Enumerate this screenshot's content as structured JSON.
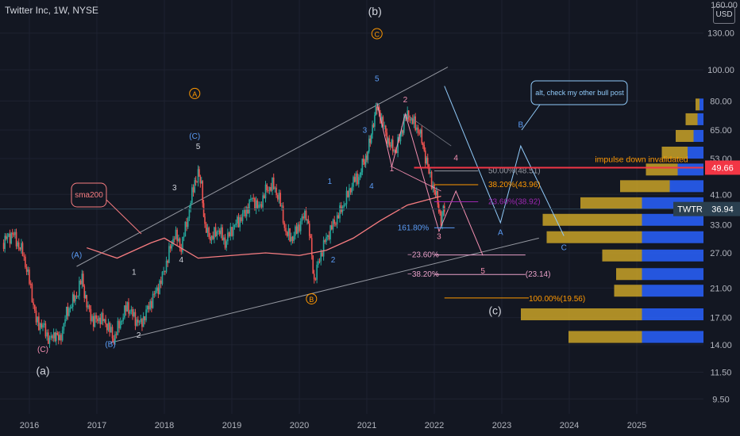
{
  "header": {
    "title": "Twitter Inc, 1W, NYSE",
    "currency": "USD"
  },
  "price_axis": {
    "top_partial": "160.00",
    "ticks": [
      "130.00",
      "100.00",
      "80.00",
      "65.00",
      "53.00",
      "41.00",
      "33.00",
      "27.00",
      "21.00",
      "17.00",
      "14.00",
      "11.50",
      "9.50"
    ],
    "badges": [
      {
        "text": "49.66",
        "color": "#f23645"
      },
      {
        "text": "TWTR",
        "color": "#2a3f4f"
      },
      {
        "text": "36.94",
        "color": "#2a3f4f"
      }
    ]
  },
  "time_axis": {
    "ticks": [
      "2016",
      "2017",
      "2018",
      "2019",
      "2020",
      "2021",
      "2022",
      "2023",
      "2024",
      "2025"
    ]
  },
  "chart_data": {
    "type": "candlestick",
    "symbol": "TWTR",
    "interval": "1W",
    "x_range": [
      2015.6,
      2025.9
    ],
    "y_range_log": [
      8.5,
      165
    ],
    "current_price": 36.94,
    "invalidation_level": 49.66,
    "price_path": [
      [
        2015.6,
        29
      ],
      [
        2015.75,
        31
      ],
      [
        2015.9,
        27
      ],
      [
        2016.0,
        22
      ],
      [
        2016.1,
        16.5
      ],
      [
        2016.2,
        16
      ],
      [
        2016.3,
        14.4
      ],
      [
        2016.38,
        15.2
      ],
      [
        2016.45,
        14.4
      ],
      [
        2016.55,
        17.5
      ],
      [
        2016.7,
        20
      ],
      [
        2016.78,
        22.5
      ],
      [
        2016.85,
        18.5
      ],
      [
        2016.95,
        16.5
      ],
      [
        2017.05,
        17
      ],
      [
        2017.15,
        16.2
      ],
      [
        2017.25,
        14.6
      ],
      [
        2017.35,
        16.5
      ],
      [
        2017.45,
        18.5
      ],
      [
        2017.55,
        17
      ],
      [
        2017.65,
        16.2
      ],
      [
        2017.75,
        18
      ],
      [
        2017.85,
        20
      ],
      [
        2017.95,
        22
      ],
      [
        2018.05,
        26
      ],
      [
        2018.15,
        31
      ],
      [
        2018.25,
        28
      ],
      [
        2018.35,
        35
      ],
      [
        2018.45,
        45
      ],
      [
        2018.5,
        47
      ],
      [
        2018.55,
        44
      ],
      [
        2018.6,
        32
      ],
      [
        2018.7,
        30
      ],
      [
        2018.8,
        32
      ],
      [
        2018.9,
        29
      ],
      [
        2019.0,
        32
      ],
      [
        2019.1,
        34
      ],
      [
        2019.2,
        36
      ],
      [
        2019.3,
        40
      ],
      [
        2019.4,
        37
      ],
      [
        2019.5,
        42
      ],
      [
        2019.6,
        44
      ],
      [
        2019.7,
        40
      ],
      [
        2019.8,
        31
      ],
      [
        2019.9,
        30
      ],
      [
        2020.0,
        33
      ],
      [
        2020.1,
        36
      ],
      [
        2020.15,
        31
      ],
      [
        2020.22,
        22
      ],
      [
        2020.3,
        26
      ],
      [
        2020.4,
        30
      ],
      [
        2020.5,
        33
      ],
      [
        2020.6,
        36
      ],
      [
        2020.7,
        40
      ],
      [
        2020.8,
        45
      ],
      [
        2020.9,
        47
      ],
      [
        2020.95,
        52
      ],
      [
        2021.0,
        54
      ],
      [
        2021.05,
        60
      ],
      [
        2021.1,
        70
      ],
      [
        2021.15,
        76
      ],
      [
        2021.2,
        72
      ],
      [
        2021.28,
        63
      ],
      [
        2021.35,
        58
      ],
      [
        2021.42,
        56
      ],
      [
        2021.5,
        62
      ],
      [
        2021.55,
        70
      ],
      [
        2021.62,
        72
      ],
      [
        2021.7,
        68
      ],
      [
        2021.78,
        64
      ],
      [
        2021.85,
        56
      ],
      [
        2021.92,
        48
      ],
      [
        2022.0,
        42
      ],
      [
        2022.05,
        39
      ],
      [
        2022.1,
        34
      ],
      [
        2022.15,
        37
      ]
    ],
    "sma200": [
      [
        2016.85,
        28
      ],
      [
        2017.3,
        26
      ],
      [
        2017.8,
        29
      ],
      [
        2018.0,
        30
      ],
      [
        2018.5,
        26
      ],
      [
        2019.0,
        26.5
      ],
      [
        2019.5,
        27
      ],
      [
        2020.0,
        26.5
      ],
      [
        2020.4,
        27.5
      ],
      [
        2020.8,
        30
      ],
      [
        2021.2,
        34
      ],
      [
        2021.6,
        38
      ],
      [
        2022.1,
        40.5
      ]
    ],
    "fibonacci": [
      {
        "label": "50.00%(48.51)",
        "value": 48.51,
        "color": "#9598a1"
      },
      {
        "label": "38.20%(43.96)",
        "value": 43.96,
        "color": "#ff9800"
      },
      {
        "label": "23.60%(38.92)",
        "value": 38.92,
        "color": "#9c27b0"
      },
      {
        "label": "161.80%",
        "value": 32.3,
        "color": "#5b9cf6"
      },
      {
        "label": "−23.60%",
        "value": 26.6,
        "color": "#e8a0c8"
      },
      {
        "label": "−38.20%",
        "value": 23.14,
        "color": "#e8a0c8"
      },
      {
        "label": "(23.14)",
        "value": 23.14,
        "color": "#e8a0c8"
      },
      {
        "label": "100.00%(19.56)",
        "value": 19.56,
        "color": "#ff9800"
      }
    ],
    "annotations": {
      "sma_label": "sma200",
      "alt_callout": "alt, check my other bull post",
      "invalidated": "impulse down invalidated",
      "wave_labels": [
        {
          "text": "(a)",
          "x": 2016.2,
          "y": 11.3,
          "color": "#d1d4dc"
        },
        {
          "text": "(b)",
          "x": 2021.12,
          "y": 148,
          "color": "#d1d4dc"
        },
        {
          "text": "(c)",
          "x": 2022.9,
          "y": 17.4,
          "color": "#d1d4dc"
        },
        {
          "text": "(C)",
          "x": 2016.2,
          "y": 13.3,
          "color": "#f48fb1"
        },
        {
          "text": "(A)",
          "x": 2016.7,
          "y": 26.1,
          "color": "#5b9cf6"
        },
        {
          "text": "(B)",
          "x": 2017.2,
          "y": 13.8,
          "color": "#5b9cf6"
        },
        {
          "text": "(C)",
          "x": 2018.45,
          "y": 61,
          "color": "#5b9cf6"
        },
        {
          "text": "A",
          "x": 2018.45,
          "y": 82.5,
          "color": "#ff9800"
        },
        {
          "text": "B",
          "x": 2020.18,
          "y": 19.0,
          "color": "#ff9800"
        },
        {
          "text": "C",
          "x": 2021.15,
          "y": 126.5,
          "color": "#ff9800"
        },
        {
          "text": "1",
          "x": 2017.55,
          "y": 23.1,
          "color": "#d1d4dc"
        },
        {
          "text": "2",
          "x": 2017.62,
          "y": 14.7,
          "color": "#d1d4dc"
        },
        {
          "text": "3",
          "x": 2018.15,
          "y": 42.3,
          "color": "#d1d4dc"
        },
        {
          "text": "4",
          "x": 2018.25,
          "y": 25.2,
          "color": "#d1d4dc"
        },
        {
          "text": "5",
          "x": 2018.5,
          "y": 56.7,
          "color": "#d1d4dc"
        },
        {
          "text": "1",
          "x": 2020.45,
          "y": 44.2,
          "color": "#5b9cf6"
        },
        {
          "text": "2",
          "x": 2020.5,
          "y": 25.2,
          "color": "#5b9cf6"
        },
        {
          "text": "3",
          "x": 2020.97,
          "y": 63.7,
          "color": "#5b9cf6"
        },
        {
          "text": "4",
          "x": 2021.07,
          "y": 42.7,
          "color": "#5b9cf6"
        },
        {
          "text": "5",
          "x": 2021.15,
          "y": 92.2,
          "color": "#5b9cf6"
        },
        {
          "text": "1",
          "x": 2021.37,
          "y": 48.4,
          "color": "#f48fb1"
        },
        {
          "text": "2",
          "x": 2021.57,
          "y": 79.3,
          "color": "#f48fb1"
        },
        {
          "text": "3",
          "x": 2022.07,
          "y": 29.8,
          "color": "#f48fb1"
        },
        {
          "text": "4",
          "x": 2022.32,
          "y": 52.3,
          "color": "#f48fb1"
        },
        {
          "text": "5",
          "x": 2022.72,
          "y": 23.3,
          "color": "#f48fb1"
        },
        {
          "text": "A",
          "x": 2022.98,
          "y": 30.7,
          "color": "#5b9cf6"
        },
        {
          "text": "B",
          "x": 2023.28,
          "y": 66.3,
          "color": "#5b9cf6"
        },
        {
          "text": "C",
          "x": 2023.92,
          "y": 27.5,
          "color": "#5b9cf6"
        }
      ]
    },
    "volume_profile": [
      {
        "price": 17.4,
        "up": 0.31,
        "down": 0.61
      },
      {
        "price": 14.8,
        "up": 0.31,
        "down": 0.37
      },
      {
        "price": 20.6,
        "up": 0.31,
        "down": 0.14
      },
      {
        "price": 23.2,
        "up": 0.31,
        "down": 0.13
      },
      {
        "price": 26.5,
        "up": 0.31,
        "down": 0.2
      },
      {
        "price": 30.2,
        "up": 0.31,
        "down": 0.48
      },
      {
        "price": 34.2,
        "up": 0.31,
        "down": 0.5
      },
      {
        "price": 38.5,
        "up": 0.31,
        "down": 0.31
      },
      {
        "price": 43.5,
        "up": 0.17,
        "down": 0.25
      },
      {
        "price": 49.0,
        "up": 0.13,
        "down": 0.16
      },
      {
        "price": 55.3,
        "up": 0.08,
        "down": 0.13
      },
      {
        "price": 62.3,
        "up": 0.05,
        "down": 0.09
      },
      {
        "price": 70.2,
        "up": 0.03,
        "down": 0.06
      },
      {
        "price": 78.0,
        "up": 0.02,
        "down": 0.02
      }
    ]
  }
}
